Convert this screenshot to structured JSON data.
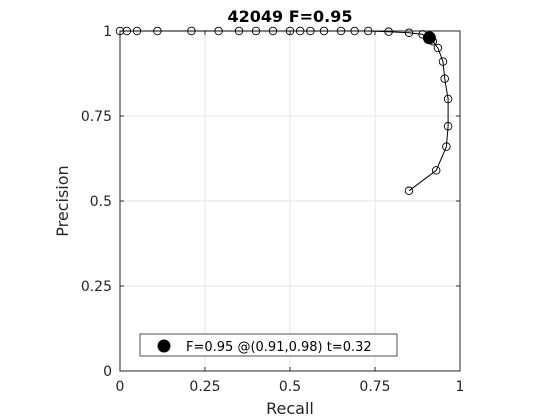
{
  "chart_data": {
    "type": "line",
    "title": "42049 F=0.95",
    "xlabel": "Recall",
    "ylabel": "Precision",
    "xlim": [
      0,
      1
    ],
    "ylim": [
      0,
      1
    ],
    "xticks": [
      "0",
      "0.25",
      "0.5",
      "0.75",
      "1"
    ],
    "yticks": [
      "0",
      "0.25",
      "0.5",
      "0.75",
      "1"
    ],
    "xtick_values": [
      0,
      0.25,
      0.5,
      0.75,
      1
    ],
    "ytick_values": [
      0,
      0.25,
      0.5,
      0.75,
      1
    ],
    "grid": true,
    "legend_position": "bottom-center",
    "series": [
      {
        "x": [
          0.0,
          0.02,
          0.05,
          0.11,
          0.21,
          0.29,
          0.35,
          0.4,
          0.45,
          0.5,
          0.53,
          0.56,
          0.6,
          0.65,
          0.69,
          0.73,
          0.79,
          0.85,
          0.89,
          0.92,
          0.935,
          0.95,
          0.955,
          0.965,
          0.965,
          0.96,
          0.93,
          0.85
        ],
        "y": [
          1.0,
          1.0,
          1.0,
          1.0,
          1.0,
          1.0,
          1.0,
          1.0,
          1.0,
          1.0,
          1.0,
          1.0,
          1.0,
          1.0,
          1.0,
          1.0,
          0.998,
          0.995,
          0.99,
          0.97,
          0.95,
          0.91,
          0.86,
          0.8,
          0.72,
          0.66,
          0.59,
          0.53
        ]
      }
    ],
    "best_point": {
      "recall": 0.91,
      "precision": 0.98,
      "label": "F=0.95 @(0.91,0.98) t=0.32"
    }
  },
  "colors": {
    "line": "#000000",
    "grid": "#e6e6e6",
    "axis": "#262626"
  }
}
